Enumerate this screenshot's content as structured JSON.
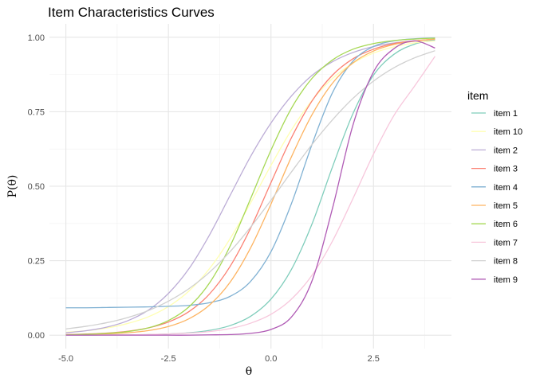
{
  "chart_data": {
    "type": "line",
    "title": "Item Characteristics Curves",
    "xlabel": "θ",
    "ylabel": "P(θ)",
    "xlim": [
      -5.0,
      4.0
    ],
    "ylim": [
      0.0,
      1.0
    ],
    "x_ticks": [
      "-5.0",
      "-2.5",
      "0.0",
      "2.5"
    ],
    "y_ticks": [
      "0.00",
      "0.25",
      "0.50",
      "0.75",
      "1.00"
    ],
    "grid": true,
    "legend_position": "right",
    "legend_title": "item",
    "x": [
      -5.0,
      -4.5,
      -4.0,
      -3.5,
      -3.0,
      -2.5,
      -2.0,
      -1.5,
      -1.0,
      -0.5,
      0.0,
      0.5,
      1.0,
      1.5,
      2.0,
      2.5,
      3.0,
      3.5,
      4.0
    ],
    "series": [
      {
        "name": "item 1",
        "color": "#7fcdbb",
        "values": [
          0.0,
          0.0,
          0.001,
          0.001,
          0.002,
          0.004,
          0.008,
          0.016,
          0.032,
          0.063,
          0.121,
          0.221,
          0.373,
          0.565,
          0.744,
          0.873,
          0.943,
          0.977,
          0.991
        ]
      },
      {
        "name": "item 10",
        "color": "#ffffb3",
        "values": [
          0.01,
          0.015,
          0.024,
          0.039,
          0.061,
          0.096,
          0.148,
          0.223,
          0.323,
          0.443,
          0.57,
          0.689,
          0.788,
          0.862,
          0.913,
          0.947,
          0.968,
          0.981,
          0.988
        ]
      },
      {
        "name": "item 2",
        "color": "#bcadd6",
        "values": [
          0.008,
          0.015,
          0.027,
          0.048,
          0.083,
          0.14,
          0.223,
          0.336,
          0.468,
          0.599,
          0.712,
          0.803,
          0.872,
          0.918,
          0.949,
          0.969,
          0.981,
          0.988,
          0.993
        ]
      },
      {
        "name": "item 3",
        "color": "#fb8072",
        "values": [
          0.002,
          0.004,
          0.007,
          0.013,
          0.024,
          0.044,
          0.079,
          0.138,
          0.23,
          0.358,
          0.512,
          0.663,
          0.786,
          0.873,
          0.928,
          0.96,
          0.979,
          0.988,
          0.994
        ]
      },
      {
        "name": "item 4",
        "color": "#80b1d3",
        "values": [
          0.092,
          0.092,
          0.093,
          0.094,
          0.095,
          0.097,
          0.1,
          0.109,
          0.13,
          0.18,
          0.28,
          0.442,
          0.64,
          0.814,
          0.92,
          0.969,
          0.988,
          0.995,
          0.998
        ]
      },
      {
        "name": "item 5",
        "color": "#fdb462",
        "values": [
          0.001,
          0.002,
          0.004,
          0.008,
          0.015,
          0.029,
          0.055,
          0.101,
          0.177,
          0.292,
          0.44,
          0.599,
          0.74,
          0.846,
          0.914,
          0.954,
          0.976,
          0.987,
          0.994
        ]
      },
      {
        "name": "item 6",
        "color": "#a6d854",
        "values": [
          0.001,
          0.003,
          0.006,
          0.012,
          0.024,
          0.049,
          0.095,
          0.175,
          0.298,
          0.457,
          0.621,
          0.762,
          0.862,
          0.924,
          0.96,
          0.979,
          0.989,
          0.994,
          0.997
        ]
      },
      {
        "name": "item 7",
        "color": "#f7c7dc",
        "values": [
          0.0,
          0.0,
          0.001,
          0.001,
          0.002,
          0.004,
          0.007,
          0.012,
          0.022,
          0.04,
          0.07,
          0.121,
          0.201,
          0.316,
          0.459,
          0.608,
          0.738,
          0.836,
          0.936
        ]
      },
      {
        "name": "item 8",
        "color": "#d0d0d0",
        "values": [
          0.021,
          0.03,
          0.042,
          0.059,
          0.082,
          0.114,
          0.156,
          0.211,
          0.28,
          0.362,
          0.453,
          0.548,
          0.64,
          0.723,
          0.795,
          0.853,
          0.898,
          0.931,
          0.955
        ]
      },
      {
        "name": "item 9",
        "color": "#b05bb5",
        "values": [
          0.0,
          0.0,
          0.0,
          0.0,
          0.0,
          0.0,
          0.0,
          0.001,
          0.002,
          0.006,
          0.019,
          0.061,
          0.182,
          0.426,
          0.706,
          0.884,
          0.962,
          0.988,
          0.964
        ]
      }
    ]
  }
}
